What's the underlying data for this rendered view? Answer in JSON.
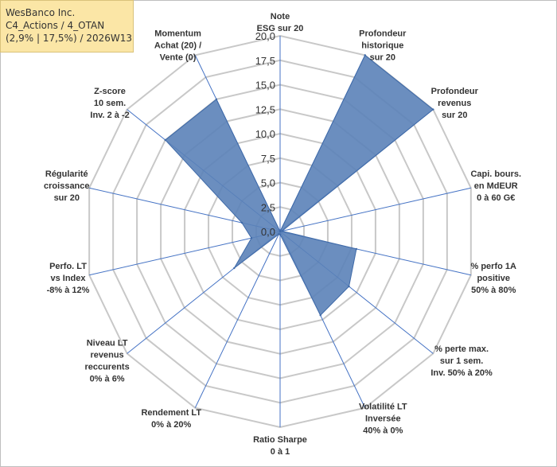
{
  "info_box": {
    "line1": "WesBanco Inc.",
    "line2": "C4_Actions / 4_OTAN",
    "line3": "(2,9% | 17,5%) / 2026W13"
  },
  "colors": {
    "fill": "#5b82b8",
    "stroke": "#3f6aa8",
    "axis": "#4472c4",
    "grid": "#c8c8c8"
  },
  "chart_data": {
    "type": "radar",
    "title": "",
    "rmin": 0,
    "rmax": 20,
    "ticks": [
      "0,0",
      "2,5",
      "5,0",
      "7,5",
      "10,0",
      "12,5",
      "15,0",
      "17,5",
      "20,0"
    ],
    "tick_values": [
      0,
      2.5,
      5,
      7.5,
      10,
      12.5,
      15,
      17.5,
      20
    ],
    "categories": [
      [
        "Note",
        "ESG sur 20"
      ],
      [
        "Profondeur",
        "historique",
        "sur 20"
      ],
      [
        "Profondeur",
        "revenus",
        "sur 20"
      ],
      [
        "Capi. bours.",
        "en MdEUR",
        "0 à 60 G€"
      ],
      [
        "% perfo 1A",
        "positive",
        "50% à 80%"
      ],
      [
        "% perte max.",
        "sur 1 sem.",
        "Inv. 50% à 20%"
      ],
      [
        "Volatilité LT",
        "Inversée",
        "40% à 0%"
      ],
      [
        "Ratio Sharpe",
        "0 à 1"
      ],
      [
        "Rendement LT",
        "0% à 20%"
      ],
      [
        "Niveau LT",
        "revenus",
        "reccurents",
        "0% à 6%"
      ],
      [
        "Perfo. LT",
        "vs Index",
        "-8% à 12%"
      ],
      [
        "Régularité",
        "croissance",
        "sur 20"
      ],
      [
        "Z-score",
        "10 sem.",
        "Inv. 2 à -2"
      ],
      [
        "Momentum",
        "Achat (20) /",
        "Vente (0)"
      ]
    ],
    "series": [
      {
        "name": "WesBanco Inc.",
        "values": [
          0,
          20,
          20,
          0.2,
          8.0,
          9.0,
          9.5,
          0.3,
          0.3,
          6.0,
          3.0,
          4.0,
          15.0,
          15.0
        ]
      }
    ]
  }
}
